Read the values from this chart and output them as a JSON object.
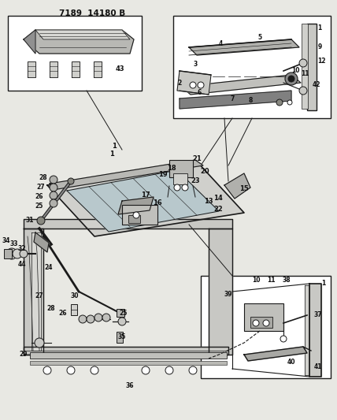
{
  "title": "7189 14180 B",
  "bg_color": "#e8e8e3",
  "line_color": "#1a1a1a",
  "text_color": "#111111",
  "white": "#ffffff",
  "gray_light": "#c8c8c4",
  "gray_med": "#a0a09c",
  "figsize": [
    4.28,
    5.33
  ],
  "dpi": 100,
  "lf": 6.0,
  "tf": 5.5
}
